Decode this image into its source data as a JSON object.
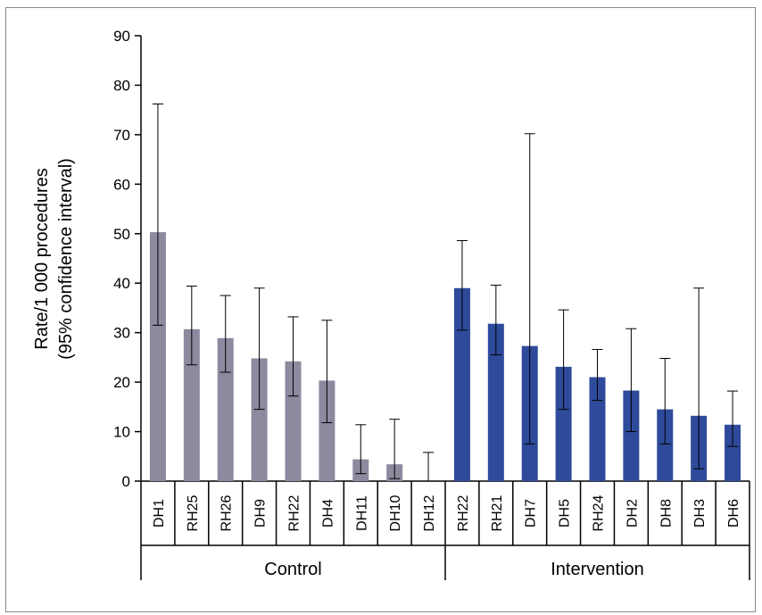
{
  "chart_data": {
    "type": "bar",
    "ylabel_lines": [
      "Rate/1 000 procedures",
      "(95% confidence interval)"
    ],
    "ylim": [
      0,
      90
    ],
    "yticks": [
      0,
      10,
      20,
      30,
      40,
      50,
      60,
      70,
      80,
      90
    ],
    "grid": false,
    "groups": [
      {
        "name": "Control",
        "color": "#8c8a9e",
        "categories": [
          "DH1",
          "RH25",
          "RH26",
          "DH9",
          "RH22",
          "DH4",
          "DH11",
          "DH10",
          "DH12"
        ],
        "values": [
          50.3,
          30.7,
          28.9,
          24.8,
          24.2,
          20.3,
          4.4,
          3.4,
          0
        ],
        "ci_low": [
          31.5,
          23.5,
          22.0,
          14.5,
          17.2,
          11.8,
          1.5,
          0.5,
          0
        ],
        "ci_high": [
          76.2,
          39.4,
          37.5,
          39.0,
          33.2,
          32.5,
          11.4,
          12.5,
          5.8
        ]
      },
      {
        "name": "Intervention",
        "color": "#2e4a9a",
        "categories": [
          "RH22",
          "RH21",
          "DH7",
          "DH5",
          "RH24",
          "DH2",
          "DH8",
          "DH3",
          "DH6"
        ],
        "values": [
          39.0,
          31.8,
          27.3,
          23.1,
          21.0,
          18.3,
          14.5,
          13.2,
          11.4
        ],
        "ci_low": [
          30.5,
          25.5,
          7.5,
          14.5,
          16.3,
          10.0,
          7.5,
          2.5,
          7.0
        ],
        "ci_high": [
          48.6,
          39.6,
          70.2,
          34.6,
          26.6,
          30.8,
          24.8,
          39.0,
          18.2
        ]
      }
    ]
  }
}
